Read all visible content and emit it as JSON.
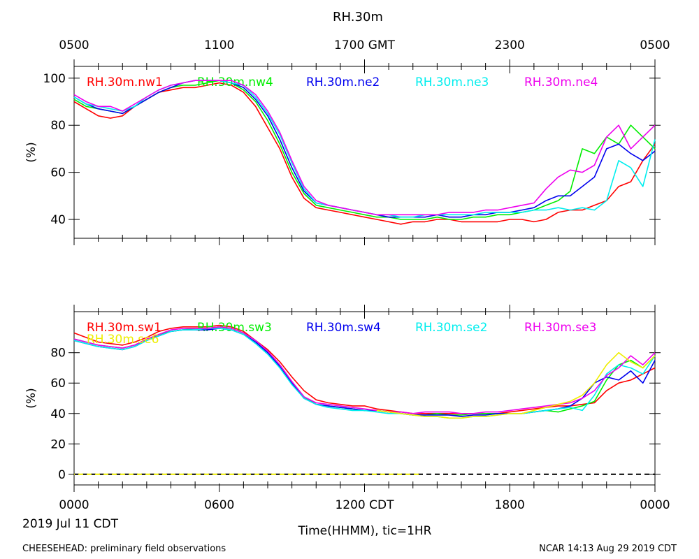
{
  "page": {
    "title": "RH.30m",
    "date_label": "2019 Jul 11 CDT",
    "xlabel": "Time(HHMM), tic=1HR",
    "footer_left": "CHEESEHEAD: preliminary field observations",
    "footer_right": "NCAR 14:13 Aug 29 2019 CDT",
    "top_ticks": [
      "0500",
      "1100",
      "1700 GMT",
      "2300",
      "0500"
    ],
    "bottom_ticks": [
      "0000",
      "0600",
      "1200 CDT",
      "1800",
      "0000"
    ]
  },
  "chart_data": [
    {
      "type": "line",
      "ylabel": "(%)",
      "ylim": [
        32,
        105
      ],
      "yticks": [
        40,
        60,
        80,
        100
      ],
      "xlim": [
        0,
        24
      ],
      "x": [
        0,
        0.5,
        1,
        1.5,
        2,
        2.5,
        3,
        3.5,
        4,
        4.5,
        5,
        5.5,
        6,
        6.5,
        7,
        7.5,
        8,
        8.5,
        9,
        9.5,
        10,
        10.5,
        11,
        11.5,
        12,
        12.5,
        13,
        13.5,
        14,
        14.5,
        15,
        15.5,
        16,
        16.5,
        17,
        17.5,
        18,
        18.5,
        19,
        19.5,
        20,
        20.5,
        21,
        21.5,
        22,
        22.5,
        23,
        23.5,
        24
      ],
      "series": [
        {
          "name": "RH.30m.nw1",
          "color": "#ff0000",
          "values": [
            90,
            87,
            84,
            83,
            84,
            88,
            91,
            94,
            95,
            96,
            96,
            97,
            98,
            97,
            94,
            88,
            79,
            70,
            58,
            49,
            45,
            44,
            43,
            42,
            41,
            40,
            39,
            38,
            39,
            39,
            40,
            40,
            39,
            39,
            39,
            39,
            40,
            40,
            39,
            40,
            43,
            44,
            44,
            46,
            48,
            54,
            56,
            65,
            72
          ]
        },
        {
          "name": "RH.30m.nw4",
          "color": "#00ee00",
          "values": [
            91,
            88,
            87,
            86,
            85,
            88,
            91,
            94,
            96,
            97,
            97,
            98,
            99,
            98,
            95,
            90,
            82,
            72,
            60,
            51,
            46,
            45,
            44,
            43,
            42,
            41,
            41,
            40,
            40,
            40,
            41,
            40,
            40,
            41,
            41,
            42,
            42,
            43,
            44,
            46,
            48,
            52,
            70,
            68,
            75,
            72,
            80,
            75,
            70
          ]
        },
        {
          "name": "RH.30m.ne2",
          "color": "#0000ee",
          "values": [
            92,
            89,
            87,
            86,
            85,
            88,
            91,
            94,
            96,
            98,
            99,
            99,
            99,
            98,
            96,
            91,
            84,
            74,
            62,
            52,
            47,
            46,
            45,
            44,
            43,
            42,
            41,
            41,
            41,
            41,
            42,
            41,
            41,
            42,
            42,
            43,
            43,
            44,
            45,
            48,
            50,
            50,
            54,
            58,
            70,
            72,
            68,
            65,
            69
          ]
        },
        {
          "name": "RH.30m.ne3",
          "color": "#00eeee",
          "values": [
            92,
            89,
            88,
            87,
            86,
            88,
            92,
            95,
            97,
            98,
            99,
            99,
            99,
            98,
            97,
            92,
            85,
            76,
            64,
            53,
            47,
            46,
            45,
            44,
            43,
            42,
            42,
            41,
            41,
            42,
            42,
            42,
            42,
            42,
            43,
            43,
            43,
            43,
            44,
            44,
            45,
            44,
            45,
            44,
            48,
            65,
            62,
            54,
            74
          ]
        },
        {
          "name": "RH.30m.ne4",
          "color": "#ee00ee",
          "values": [
            93,
            90,
            88,
            88,
            86,
            89,
            92,
            95,
            97,
            98,
            99,
            99,
            99,
            99,
            97,
            93,
            86,
            77,
            65,
            54,
            48,
            46,
            45,
            44,
            43,
            42,
            42,
            42,
            42,
            42,
            42,
            43,
            43,
            43,
            44,
            44,
            45,
            46,
            47,
            53,
            58,
            61,
            60,
            63,
            75,
            80,
            70,
            75,
            80
          ]
        }
      ]
    },
    {
      "type": "line",
      "ylabel": "(%)",
      "ylim": [
        -7,
        107
      ],
      "yticks": [
        0,
        20,
        40,
        60,
        80
      ],
      "xlim": [
        0,
        24
      ],
      "x": [
        0,
        0.5,
        1,
        1.5,
        2,
        2.5,
        3,
        3.5,
        4,
        4.5,
        5,
        5.5,
        6,
        6.5,
        7,
        7.5,
        8,
        8.5,
        9,
        9.5,
        10,
        10.5,
        11,
        11.5,
        12,
        12.5,
        13,
        13.5,
        14,
        14.5,
        15,
        15.5,
        16,
        16.5,
        17,
        17.5,
        18,
        18.5,
        19,
        19.5,
        20,
        20.5,
        21,
        21.5,
        22,
        22.5,
        23,
        23.5,
        24
      ],
      "reference_line": {
        "value": 0,
        "color": "#000000",
        "highlight_color": "#eeee00",
        "highlight_until": 14.3
      },
      "series": [
        {
          "name": "RH.30m.sw1",
          "color": "#ff0000",
          "values": [
            93,
            90,
            87,
            86,
            85,
            87,
            90,
            94,
            96,
            97,
            97,
            97,
            98,
            97,
            94,
            88,
            82,
            74,
            64,
            55,
            49,
            47,
            46,
            45,
            45,
            43,
            42,
            41,
            40,
            40,
            40,
            40,
            40,
            40,
            40,
            40,
            41,
            42,
            43,
            44,
            45,
            45,
            46,
            47,
            55,
            60,
            62,
            66,
            70
          ]
        },
        {
          "name": "RH.30m.sw3",
          "color": "#00ee00",
          "values": [
            89,
            87,
            85,
            84,
            83,
            85,
            88,
            92,
            94,
            95,
            96,
            96,
            97,
            96,
            93,
            88,
            81,
            72,
            61,
            51,
            46,
            45,
            44,
            43,
            42,
            42,
            41,
            40,
            39,
            39,
            40,
            39,
            39,
            40,
            40,
            40,
            40,
            40,
            41,
            42,
            41,
            43,
            45,
            48,
            62,
            72,
            75,
            70,
            78
          ]
        },
        {
          "name": "RH.30m.sw4",
          "color": "#0000ee",
          "values": [
            88,
            86,
            84,
            83,
            82,
            84,
            88,
            91,
            94,
            95,
            95,
            95,
            96,
            95,
            92,
            87,
            80,
            71,
            60,
            50,
            46,
            45,
            44,
            43,
            42,
            42,
            41,
            40,
            39,
            39,
            39,
            39,
            38,
            39,
            39,
            40,
            40,
            40,
            41,
            42,
            43,
            45,
            50,
            60,
            64,
            62,
            68,
            60,
            75
          ]
        },
        {
          "name": "RH.30m.se2",
          "color": "#00eeee",
          "values": [
            88,
            86,
            84,
            83,
            82,
            84,
            88,
            91,
            94,
            95,
            95,
            96,
            96,
            95,
            92,
            86,
            79,
            70,
            59,
            50,
            46,
            44,
            43,
            42,
            42,
            41,
            40,
            40,
            39,
            38,
            38,
            37,
            37,
            38,
            38,
            39,
            40,
            40,
            41,
            42,
            43,
            44,
            42,
            52,
            66,
            72,
            70,
            66,
            78
          ]
        },
        {
          "name": "RH.30m.se3",
          "color": "#ee00ee",
          "values": [
            89,
            87,
            85,
            84,
            83,
            85,
            89,
            92,
            95,
            96,
            96,
            96,
            97,
            96,
            93,
            88,
            81,
            72,
            61,
            51,
            47,
            46,
            45,
            44,
            43,
            42,
            41,
            41,
            40,
            41,
            41,
            41,
            40,
            40,
            41,
            41,
            42,
            43,
            44,
            45,
            46,
            47,
            50,
            55,
            65,
            70,
            78,
            72,
            80
          ]
        },
        {
          "name": "RH.30m.se6",
          "color": "#eeee00",
          "values": [
            null,
            null,
            null,
            null,
            null,
            null,
            null,
            null,
            null,
            null,
            null,
            null,
            null,
            null,
            null,
            null,
            null,
            null,
            null,
            null,
            null,
            null,
            null,
            null,
            null,
            42,
            41,
            40,
            39,
            38,
            38,
            37,
            37,
            38,
            38,
            39,
            40,
            40,
            42,
            44,
            46,
            48,
            52,
            60,
            72,
            80,
            74,
            70,
            78
          ]
        }
      ]
    }
  ]
}
